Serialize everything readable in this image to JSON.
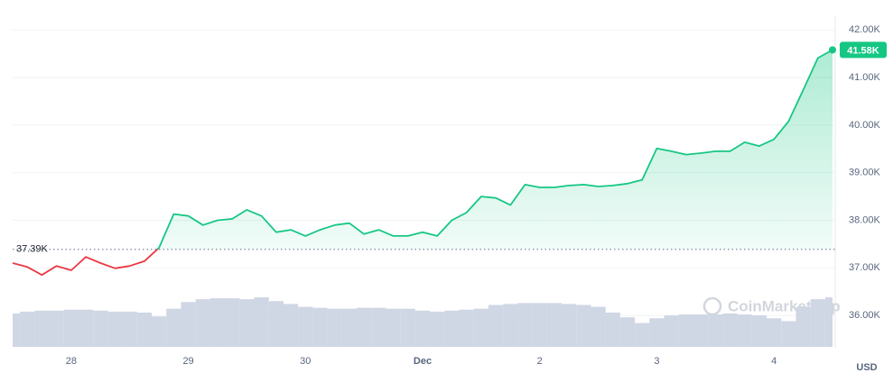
{
  "chart_data": {
    "type": "line",
    "x": [
      0,
      3,
      6,
      9,
      12,
      15,
      18,
      21,
      24,
      27,
      30,
      33,
      36,
      39,
      42,
      45,
      48,
      51,
      54,
      57,
      60,
      63,
      66,
      69,
      72,
      75,
      78,
      81,
      84,
      87,
      90,
      93,
      96,
      99,
      102,
      105,
      108,
      111,
      114,
      117,
      120,
      123,
      126,
      129,
      132,
      135,
      138,
      141,
      144,
      147,
      150,
      153,
      156,
      159,
      162,
      165,
      168
    ],
    "series": [
      {
        "name": "Price",
        "color": "#16c784",
        "color_below": "#ea3943",
        "values": [
          37100,
          37020,
          36850,
          37040,
          36950,
          37230,
          37100,
          36990,
          37040,
          37140,
          37420,
          38130,
          38090,
          37900,
          38000,
          38030,
          38220,
          38090,
          37750,
          37800,
          37670,
          37800,
          37900,
          37940,
          37710,
          37800,
          37670,
          37670,
          37750,
          37670,
          38000,
          38160,
          38500,
          38470,
          38320,
          38750,
          38690,
          38690,
          38730,
          38750,
          38710,
          38730,
          38770,
          38850,
          39510,
          39450,
          39380,
          39410,
          39450,
          39450,
          39640,
          39560,
          39700,
          40080,
          40740,
          41410,
          41580
        ]
      }
    ],
    "volume": {
      "color": "#cfd6e4",
      "values": [
        35,
        37,
        38,
        38,
        39,
        39,
        38,
        37,
        37,
        36,
        32,
        40,
        47,
        50,
        51,
        51,
        50,
        52,
        48,
        45,
        42,
        41,
        40,
        40,
        41,
        41,
        40,
        40,
        38,
        37,
        38,
        39,
        40,
        44,
        45,
        46,
        46,
        46,
        45,
        44,
        42,
        36,
        31,
        25,
        30,
        33,
        34,
        34,
        34,
        35,
        34,
        33,
        30,
        27,
        42,
        50,
        52
      ]
    },
    "xlim": [
      0,
      168
    ],
    "xticks": [
      {
        "value": 12,
        "label": "28"
      },
      {
        "value": 36,
        "label": "29"
      },
      {
        "value": 60,
        "label": "30"
      },
      {
        "value": 84,
        "label": "Dec"
      },
      {
        "value": 108,
        "label": "2"
      },
      {
        "value": 132,
        "label": "3"
      },
      {
        "value": 156,
        "label": "4"
      }
    ],
    "ylim": [
      35340,
      42250
    ],
    "yticks": [
      {
        "value": 36000,
        "label": "36.00K"
      },
      {
        "value": 37000,
        "label": "37.00K"
      },
      {
        "value": 38000,
        "label": "38.00K"
      },
      {
        "value": 39000,
        "label": "39.00K"
      },
      {
        "value": 40000,
        "label": "40.00K"
      },
      {
        "value": 41000,
        "label": "41.00K"
      },
      {
        "value": 42000,
        "label": "42.00K"
      }
    ],
    "reference": {
      "value": 37390,
      "label": "37.39K"
    },
    "current": {
      "value": 41580,
      "label": "41.58K"
    },
    "x_axis_label": "USD",
    "watermark": "CoinMarketCap",
    "grid": true
  }
}
